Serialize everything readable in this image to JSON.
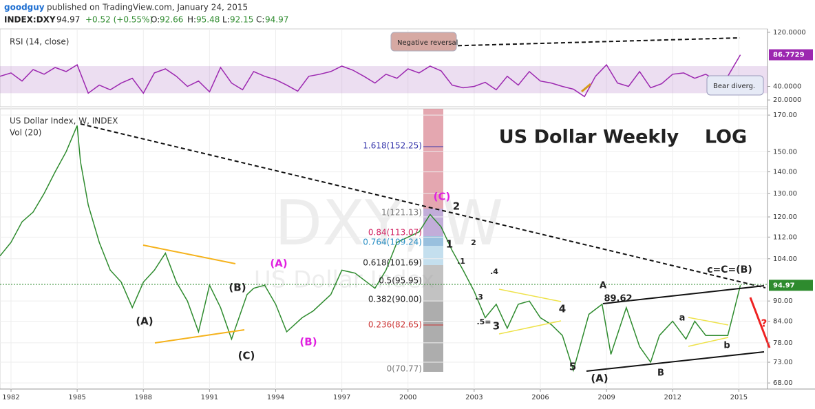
{
  "header": {
    "user": "goodguy",
    "published": "published on TradingView.com, January 24, 2015",
    "symbol": "INDEX:DXY",
    "last": "94.97",
    "change": "+0.52 (+0.55%)",
    "o_label": "O:",
    "o": "92.66",
    "h_label": "H:",
    "h": "95.48",
    "l_label": "L:",
    "l": "92.15",
    "c_label": "C:",
    "c": "94.97"
  },
  "watermark": {
    "symbol": "DXY, W",
    "name": "US Dollar Index"
  },
  "chart_data": [
    {
      "type": "line",
      "title": "US Dollar Index, W, INDEX",
      "subtitle": "Vol (20)",
      "log_scale": true,
      "color": "#2e8b2e",
      "x": [
        1981.5,
        1982,
        1982.5,
        1983,
        1983.5,
        1984,
        1984.5,
        1985,
        1985.15,
        1985.5,
        1986,
        1986.5,
        1987,
        1987.5,
        1988,
        1988.5,
        1989,
        1989.5,
        1990,
        1990.5,
        1991,
        1991.5,
        1992,
        1992.7,
        1993,
        1993.5,
        1994,
        1994.5,
        1995.2,
        1995.7,
        1996.5,
        1997,
        1997.6,
        1998.5,
        1999,
        1999.5,
        2000.5,
        2001,
        2001.5,
        2002,
        2002.5,
        2003,
        2003.5,
        2004,
        2004.5,
        2005,
        2005.5,
        2006,
        2006.5,
        2007,
        2007.5,
        2008.2,
        2008.8,
        2009.2,
        2009.9,
        2010.5,
        2011,
        2011.4,
        2012,
        2012.6,
        2013,
        2013.5,
        2014,
        2014.5,
        2015.07
      ],
      "values": [
        105,
        110,
        118,
        122,
        130,
        140,
        150,
        164,
        145,
        125,
        110,
        100,
        96,
        88,
        96,
        100,
        106,
        96,
        90,
        81,
        95,
        88,
        79,
        92,
        94,
        95,
        89,
        81,
        85,
        87,
        92,
        100,
        99,
        94,
        100,
        110,
        114,
        121,
        116,
        107,
        100,
        93,
        85,
        89,
        82,
        89,
        90,
        85,
        83,
        80,
        71,
        86,
        89,
        75,
        88,
        77,
        73,
        80,
        84,
        79,
        84,
        80,
        80,
        80,
        94.97
      ],
      "last_label": "94.97",
      "xlim": [
        1981.5,
        2016.3
      ],
      "xticks": [
        1982,
        1985,
        1988,
        1991,
        1994,
        1997,
        2000,
        2003,
        2006,
        2009,
        2012,
        2015
      ],
      "ylim": [
        66.6,
        173.7
      ],
      "yticks": [
        {
          "value": 68,
          "label": "68.00"
        },
        {
          "value": 73,
          "label": "73.00"
        },
        {
          "value": 78,
          "label": "78.00"
        },
        {
          "value": 84,
          "label": "84.00"
        },
        {
          "value": 90,
          "label": "90.00"
        },
        {
          "value": 104,
          "label": "104.00"
        },
        {
          "value": 112,
          "label": "112.00"
        },
        {
          "value": 120,
          "label": "120.00"
        },
        {
          "value": 130,
          "label": "130.00"
        },
        {
          "value": 140,
          "label": "140.00"
        },
        {
          "value": 150,
          "label": "150.00"
        },
        {
          "value": 170,
          "label": "170.00"
        }
      ],
      "grid": true,
      "annotations": [
        "(A)",
        "(C)",
        "(B)",
        "(A)",
        "(B)",
        "(C)",
        "2",
        "1",
        "2",
        ".1",
        ".4",
        ".3",
        ".5=",
        "3",
        "4",
        "5",
        "(A)",
        "A",
        "89.62",
        "B",
        "a",
        "b",
        "c=C=(B)",
        "?",
        "US Dollar Weekly    LOG"
      ],
      "fib_labels": [
        "1.618(152.25)",
        "1(121.13)",
        "0.84(113.07)",
        "0.764(109.24)",
        "0.618(101.69)",
        "0.5(95.95)",
        "0.382(90.00)",
        "0.236(82.65)",
        "0(70.77)"
      ]
    },
    {
      "type": "line",
      "title": "RSI (14, close)",
      "color": "#9c27b0",
      "x": [
        1981.5,
        1982,
        1982.5,
        1983,
        1983.5,
        1984,
        1984.5,
        1985,
        1985.5,
        1986,
        1986.5,
        1987,
        1987.5,
        1988,
        1988.5,
        1989,
        1989.5,
        1990,
        1990.5,
        1991,
        1991.5,
        1992,
        1992.5,
        1993,
        1993.5,
        1994,
        1994.5,
        1995,
        1995.5,
        1996,
        1996.5,
        1997,
        1997.5,
        1998,
        1998.5,
        1999,
        1999.5,
        2000,
        2000.5,
        2001,
        2001.5,
        2002,
        2002.5,
        2003,
        2003.5,
        2004,
        2004.5,
        2005,
        2005.5,
        2006,
        2006.5,
        2007,
        2007.5,
        2008,
        2008.5,
        2009,
        2009.5,
        2010,
        2010.5,
        2011,
        2011.5,
        2012,
        2012.5,
        2013,
        2013.5,
        2014,
        2014.5,
        2015.07
      ],
      "values": [
        55,
        60,
        48,
        65,
        58,
        68,
        62,
        72,
        30,
        42,
        35,
        45,
        52,
        30,
        60,
        66,
        55,
        40,
        48,
        32,
        68,
        45,
        35,
        62,
        55,
        50,
        42,
        33,
        55,
        58,
        62,
        70,
        64,
        55,
        45,
        58,
        52,
        66,
        60,
        70,
        63,
        42,
        38,
        40,
        46,
        35,
        55,
        42,
        62,
        48,
        45,
        40,
        36,
        25,
        55,
        72,
        45,
        40,
        62,
        38,
        44,
        58,
        60,
        52,
        58,
        48,
        55,
        86.7729
      ],
      "band": [
        30,
        70
      ],
      "xlim": [
        1981.5,
        2016.3
      ],
      "ylim": [
        10,
        125
      ],
      "yticks": [
        {
          "value": 20,
          "label": "20.0000"
        },
        {
          "value": 40,
          "label": "40.0000"
        },
        {
          "value": 120,
          "label": "120.0000"
        }
      ],
      "annotations": [
        "Negative reversal",
        "Bear diverg."
      ]
    }
  ]
}
